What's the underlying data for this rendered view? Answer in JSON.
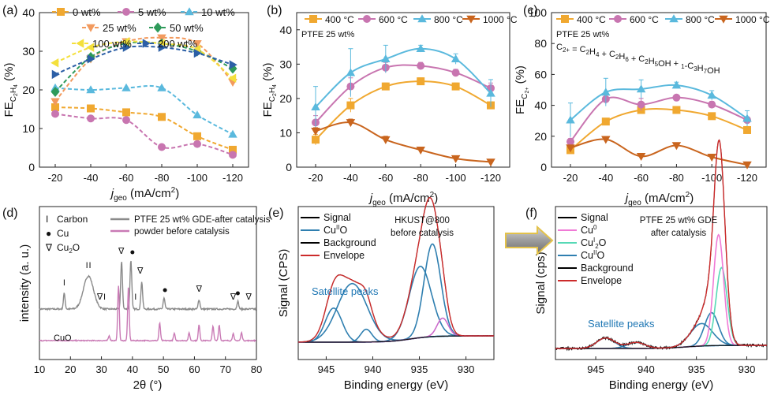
{
  "chart_data": [
    {
      "panel": "(a)",
      "type": "line",
      "ylabel": "FE",
      "ylabel_subscript": "C2H4",
      "ylabel_unit": "(%)",
      "xlabel_j": "j",
      "xlabel_sub": "geo",
      "xlabel_unit": " (mA/cm",
      "xlabel_sup": "2",
      "xlabel_end": ")",
      "ylim": [
        0,
        40
      ],
      "yticks": [
        "0",
        "10",
        "20",
        "30",
        "40"
      ],
      "xticks": [
        "-20",
        "-40",
        "-60",
        "-80",
        "-100",
        "-120"
      ],
      "categories": [
        -20,
        -40,
        -60,
        -80,
        -100,
        -120
      ],
      "series": [
        {
          "name": "0 wt%",
          "color": "#f0a830",
          "marker": "square",
          "values": [
            15.5,
            15.2,
            14.2,
            13.0,
            8.0,
            4.5
          ]
        },
        {
          "name": "5 wt%",
          "color": "#c875b0",
          "marker": "circle",
          "values": [
            13.8,
            12.6,
            12.2,
            5.2,
            6.0,
            3.2
          ]
        },
        {
          "name": "10 wt%",
          "color": "#5ab9dd",
          "marker": "triangle",
          "values": [
            20.5,
            20.0,
            20.5,
            20.5,
            13.5,
            8.5
          ]
        },
        {
          "name": "25 wt%",
          "color": "#f29a5e",
          "marker": "triangle-down",
          "values": [
            17.0,
            28.0,
            32.5,
            33.5,
            32.0,
            22.0
          ]
        },
        {
          "name": "50 wt%",
          "color": "#2e9a5a",
          "marker": "diamond",
          "values": [
            19.5,
            28.5,
            32.0,
            32.0,
            30.0,
            25.5
          ]
        },
        {
          "name": "100 wt%",
          "color": "#f4e03c",
          "marker": "triangle-left",
          "values": [
            27.0,
            31.0,
            32.5,
            32.0,
            30.5,
            23.0
          ]
        },
        {
          "name": "200 wt%",
          "color": "#2c5fa6",
          "marker": "triangle-right",
          "values": [
            24.0,
            28.0,
            31.0,
            31.0,
            29.5,
            26.5
          ]
        }
      ]
    },
    {
      "panel": "(b)",
      "type": "line",
      "annotation": "PTFE 25 wt%",
      "ylabel": "FE",
      "ylabel_subscript": "C2H4",
      "ylabel_unit": "(%)",
      "xlabel_j": "j",
      "xlabel_sub": "geo",
      "xlabel_unit": " (mA/cm",
      "xlabel_sup": "2",
      "xlabel_end": ")",
      "ylim": [
        0,
        45
      ],
      "yticks": [
        "0",
        "10",
        "20",
        "30",
        "40"
      ],
      "xticks": [
        "-20",
        "-40",
        "-60",
        "-80",
        "-100",
        "-120"
      ],
      "categories": [
        -20,
        -40,
        -60,
        -80,
        -100,
        -120
      ],
      "series": [
        {
          "name": "400 °C",
          "color": "#f0a830",
          "marker": "square",
          "values": [
            8.0,
            18.0,
            23.5,
            25.0,
            23.5,
            18.0
          ],
          "err": [
            1.5,
            2.0,
            1.0,
            1.0,
            1.0,
            1.0
          ]
        },
        {
          "name": "600 °C",
          "color": "#c875b0",
          "marker": "circle",
          "values": [
            13.0,
            23.5,
            29.0,
            29.5,
            27.5,
            23.0
          ],
          "err": [
            2.0,
            2.5,
            1.5,
            1.0,
            1.0,
            1.5
          ]
        },
        {
          "name": "800 °C",
          "color": "#5ab9dd",
          "marker": "triangle",
          "values": [
            17.5,
            27.5,
            31.5,
            34.5,
            31.5,
            21.5
          ],
          "err": [
            6.0,
            7.0,
            4.0,
            1.0,
            1.5,
            4.0
          ]
        },
        {
          "name": "1000 °C",
          "color": "#c9651e",
          "marker": "triangle-down",
          "values": [
            10.5,
            13.0,
            8.0,
            5.0,
            2.5,
            1.5
          ],
          "err": [
            1.0,
            1.0,
            1.0,
            0.5,
            0.5,
            0.3
          ]
        }
      ]
    },
    {
      "panel": "(c)",
      "type": "line",
      "annotation": "PTFE 25 wt%",
      "annotation2": "C2+ = C2H4 + C2H6 + C2H5OH + 1-C3H7OH",
      "ylabel": "FE",
      "ylabel_subscript": "C2+",
      "ylabel_unit": "(%)",
      "xlabel_j": "j",
      "xlabel_sub": "geo",
      "xlabel_unit": " (mA/cm",
      "xlabel_sup": "2",
      "xlabel_end": ")",
      "ylim": [
        0,
        100
      ],
      "yticks": [
        "0",
        "20",
        "40",
        "60",
        "80",
        "100"
      ],
      "xticks": [
        "-20",
        "-40",
        "-60",
        "-80",
        "-100",
        "-120"
      ],
      "categories": [
        -20,
        -40,
        -60,
        -80,
        -100,
        -120
      ],
      "series": [
        {
          "name": "400 °C",
          "color": "#f0a830",
          "marker": "square",
          "values": [
            11.0,
            29.5,
            37.0,
            37.0,
            33.0,
            24.0
          ],
          "err": [
            2,
            2,
            2,
            1,
            1.5,
            1.5
          ]
        },
        {
          "name": "600 °C",
          "color": "#c875b0",
          "marker": "circle",
          "values": [
            16.5,
            44.0,
            40.5,
            45.0,
            40.5,
            30.5
          ],
          "err": [
            2,
            3,
            4,
            1.5,
            2,
            2
          ]
        },
        {
          "name": "800 °C",
          "color": "#5ab9dd",
          "marker": "triangle",
          "values": [
            30.5,
            48.5,
            50.5,
            53.0,
            46.5,
            31.5
          ],
          "err": [
            11,
            9,
            6,
            2,
            3,
            5
          ]
        },
        {
          "name": "1000 °C",
          "color": "#c9651e",
          "marker": "triangle-down",
          "values": [
            12.5,
            18.0,
            7.0,
            14.0,
            6.5,
            1.5
          ],
          "err": [
            1,
            1.5,
            1,
            1.5,
            1,
            0.5
          ]
        }
      ]
    },
    {
      "panel": "(d)",
      "type": "line",
      "ylabel": "intensity (a. u.)",
      "xlabel": "2θ (°)",
      "xlim": [
        10,
        80
      ],
      "xticks": [
        "10",
        "20",
        "30",
        "40",
        "50",
        "60",
        "70",
        "80"
      ],
      "legend": [
        {
          "symbol": "I",
          "text": "Carbon"
        },
        {
          "symbol": "●",
          "text": "Cu"
        },
        {
          "symbol": "∇",
          "text": "Cu2O"
        }
      ],
      "series": [
        {
          "name": "PTFE 25 wt% GDE-after catalysis",
          "color": "#8a8a8a"
        },
        {
          "name": "powder before catalysis",
          "color": "#c97ab5"
        }
      ],
      "curve_label": "CuO",
      "peaks_gray": [
        [
          18,
          20
        ],
        [
          25.8,
          42
        ],
        [
          36.5,
          60
        ],
        [
          39.5,
          62
        ],
        [
          43,
          35
        ],
        [
          50.2,
          14
        ],
        [
          61.5,
          12
        ],
        [
          74,
          10
        ]
      ],
      "peaks_pink": [
        [
          32.5,
          6
        ],
        [
          35.5,
          70
        ],
        [
          38.7,
          68
        ],
        [
          48.8,
          22
        ],
        [
          53.5,
          9
        ],
        [
          58.3,
          10
        ],
        [
          61.5,
          20
        ],
        [
          66,
          18
        ],
        [
          68,
          20
        ],
        [
          72.5,
          9
        ],
        [
          75.2,
          10
        ]
      ],
      "markers": [
        {
          "x": 18,
          "sym": "I"
        },
        {
          "x": 25.3,
          "sym": "I"
        },
        {
          "x": 26.3,
          "sym": "I"
        },
        {
          "x": 29.5,
          "sym": "∇"
        },
        {
          "x": 31,
          "sym": "I"
        },
        {
          "x": 36.4,
          "sym": "∇"
        },
        {
          "x": 40,
          "sym": "●"
        },
        {
          "x": 41,
          "sym": "I"
        },
        {
          "x": 42.5,
          "sym": "∇"
        },
        {
          "x": 50.5,
          "sym": "●"
        },
        {
          "x": 61.5,
          "sym": "∇"
        },
        {
          "x": 72.5,
          "sym": "∇"
        },
        {
          "x": 74,
          "sym": "●"
        },
        {
          "x": 77.5,
          "sym": "∇"
        }
      ]
    },
    {
      "panel": "(e)",
      "type": "line",
      "ylabel": "Signal (CPS)",
      "xlabel": "Binding energy (eV)",
      "xlim": [
        948,
        927
      ],
      "xticks": [
        "945",
        "940",
        "935",
        "930"
      ],
      "xtick_values": [
        945,
        940,
        935,
        930
      ],
      "title_line1": "HKUST@800",
      "title_line2": "before catalysis",
      "annotation": "Satellite peaks",
      "legend": [
        {
          "text": "Signal",
          "color": "#000000"
        },
        {
          "text": "CuIIO",
          "color": "#2f7fb0"
        },
        {
          "text": "Background",
          "color": "#000000"
        },
        {
          "text": "Envelope",
          "color": "#cc2b2b"
        }
      ],
      "components": [
        {
          "center": 944.2,
          "height": 0.32,
          "width": 0.9,
          "color": "#2f7fb0"
        },
        {
          "center": 942.2,
          "height": 0.55,
          "width": 1.6,
          "color": "#2f7fb0"
        },
        {
          "center": 940.7,
          "height": 0.12,
          "width": 0.6,
          "color": "#2f7fb0"
        },
        {
          "center": 934.9,
          "height": 0.67,
          "width": 1.2,
          "color": "#2f7fb0"
        },
        {
          "center": 933.6,
          "height": 0.87,
          "width": 0.9,
          "color": "#2f7fb0"
        },
        {
          "center": 932.5,
          "height": 0.17,
          "width": 0.6,
          "color": "#cc6bcc"
        }
      ]
    },
    {
      "panel": "(f)",
      "type": "line",
      "ylabel": "Signal (cps)",
      "xlabel": "Binding energy (eV)",
      "xlim": [
        949,
        928
      ],
      "xticks": [
        "945",
        "940",
        "935",
        "930"
      ],
      "xtick_values": [
        945,
        940,
        935,
        930
      ],
      "title_line1": "PTFE 25 wt% GDE",
      "title_line2": "after catalysis",
      "annotation": "Satellite peaks",
      "legend": [
        {
          "text": "Signal",
          "color": "#000000"
        },
        {
          "text": "Cu0",
          "color": "#f07ad6"
        },
        {
          "text": "CuI2O",
          "color": "#56d9b6"
        },
        {
          "text": "CuIIO",
          "color": "#2f7fb0"
        },
        {
          "text": "Background",
          "color": "#000000"
        },
        {
          "text": "Envelope",
          "color": "#cc2b2b"
        }
      ],
      "components": [
        {
          "center": 944.0,
          "height": 0.07,
          "width": 0.9,
          "color": "#2f7fb0"
        },
        {
          "center": 941.0,
          "height": 0.04,
          "width": 0.9,
          "color": "#2f7fb0"
        },
        {
          "center": 934.5,
          "height": 0.15,
          "width": 1.1,
          "color": "#2f7fb0"
        },
        {
          "center": 933.5,
          "height": 0.22,
          "width": 0.7,
          "color": "#2f7fb0"
        },
        {
          "center": 932.5,
          "height": 0.52,
          "width": 0.55,
          "color": "#56d9b6"
        },
        {
          "center": 932.8,
          "height": 0.74,
          "width": 0.5,
          "color": "#f07ad6"
        }
      ]
    }
  ],
  "panel_labels": [
    "(a)",
    "(b)",
    "(c)",
    "(d)",
    "(e)",
    "(f)"
  ]
}
